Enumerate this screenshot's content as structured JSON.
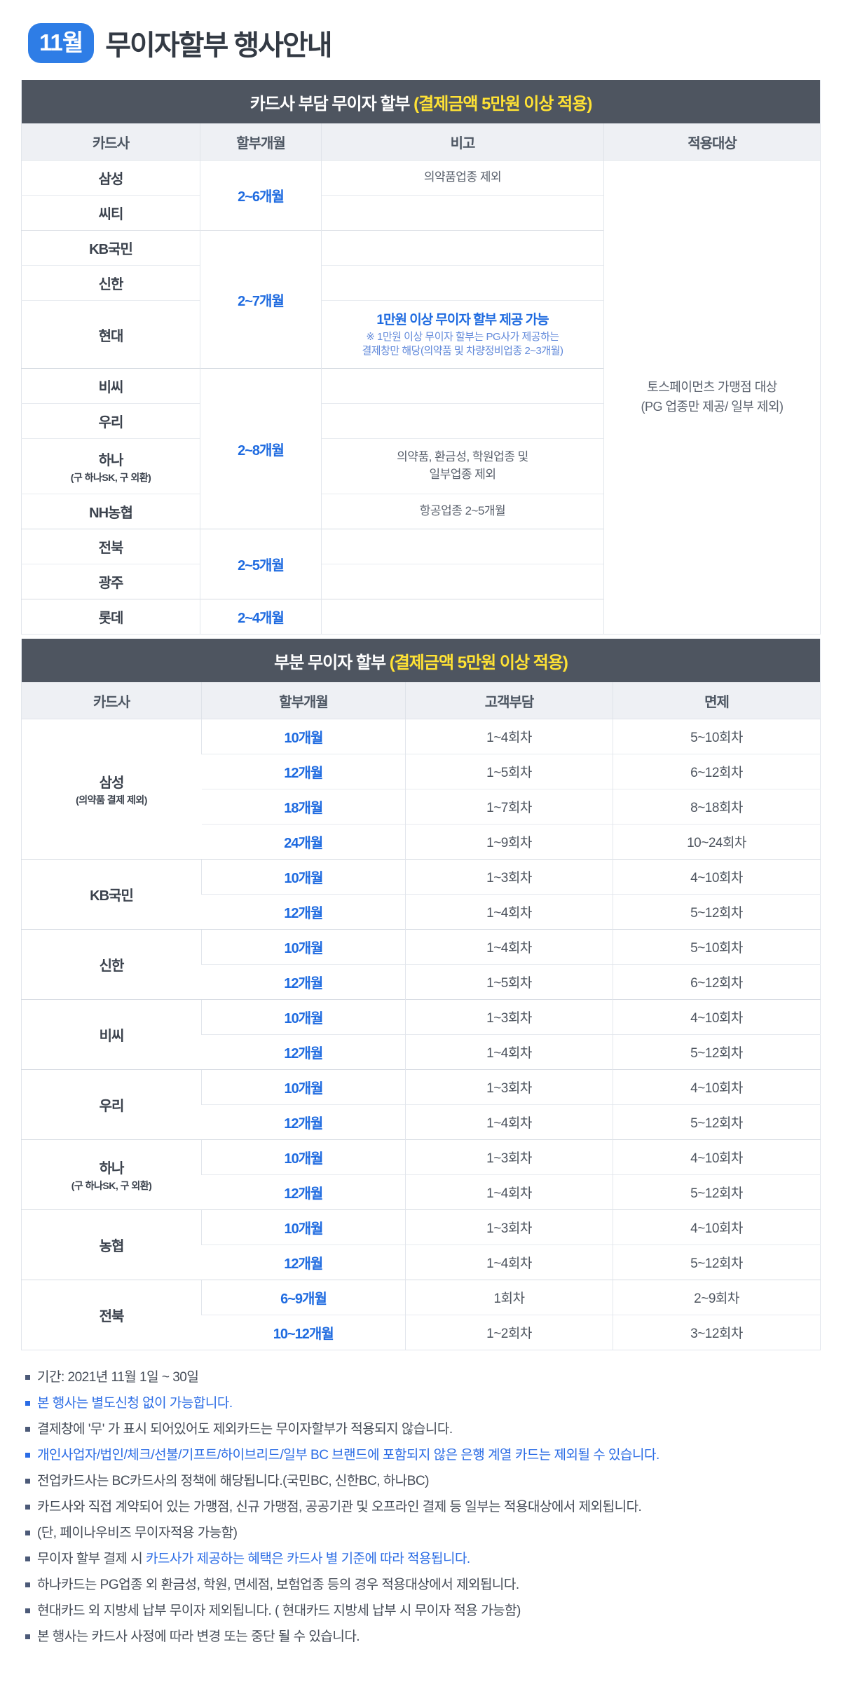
{
  "page": {
    "title_badge": "11월",
    "title": "무이자할부 행사안내"
  },
  "colors": {
    "badge_blue": "#2e7de6",
    "band_dark": "#4e5560",
    "highlight_yellow": "#ffe234",
    "accent_blue": "#1f6be0",
    "note_blue": "#2b6ce5"
  },
  "table1": {
    "header": "카드사 부담 무이자 할부 ",
    "header_highlight": "(결제금액 5만원 이상 적용)",
    "columns": [
      "카드사",
      "할부개월",
      "비고",
      "적용대상"
    ],
    "apply_target": {
      "line1": "토스페이먼츠 가맹점 대상",
      "line2": "(PG 업종만 제공/ 일부 제외)"
    },
    "groups": [
      {
        "months": "2~6개월",
        "rows": [
          {
            "card": "삼성",
            "note": "의약품업종 제외"
          },
          {
            "card": "씨티",
            "note": ""
          }
        ]
      },
      {
        "months": "2~7개월",
        "rows": [
          {
            "card": "KB국민",
            "note": ""
          },
          {
            "card": "신한",
            "note": ""
          },
          {
            "card": "현대",
            "note_title": "1만원 이상 무이자 할부 제공 가능",
            "note_sub": [
              "※ 1만원 이상 무이자 할부는 PG사가 제공하는",
              "결제창만 해당(의약품 및 차량정비업종 2~3개월)"
            ]
          }
        ]
      },
      {
        "months": "2~8개월",
        "rows": [
          {
            "card": "비씨",
            "note": ""
          },
          {
            "card": "우리",
            "note": ""
          },
          {
            "card": "하나",
            "card_sub": "(구 하나SK, 구 외환)",
            "note": "의약품, 환금성, 학원업종 및\n일부업종 제외"
          },
          {
            "card": "NH농협",
            "note": "항공업종 2~5개월"
          }
        ]
      },
      {
        "months": "2~5개월",
        "rows": [
          {
            "card": "전북",
            "note": ""
          },
          {
            "card": "광주",
            "note": ""
          }
        ]
      },
      {
        "months": "2~4개월",
        "rows": [
          {
            "card": "롯데",
            "note": ""
          }
        ]
      }
    ]
  },
  "table2": {
    "header": "부분 무이자 할부 ",
    "header_highlight": "(결제금액 5만원 이상 적용)",
    "columns": [
      "카드사",
      "할부개월",
      "고객부담",
      "면제"
    ],
    "groups": [
      {
        "card": "삼성",
        "card_sub": "(의약품 결제 제외)",
        "rows": [
          [
            "10개월",
            "1~4회차",
            "5~10회차"
          ],
          [
            "12개월",
            "1~5회차",
            "6~12회차"
          ],
          [
            "18개월",
            "1~7회차",
            "8~18회차"
          ],
          [
            "24개월",
            "1~9회차",
            "10~24회차"
          ]
        ]
      },
      {
        "card": "KB국민",
        "rows": [
          [
            "10개월",
            "1~3회차",
            "4~10회차"
          ],
          [
            "12개월",
            "1~4회차",
            "5~12회차"
          ]
        ]
      },
      {
        "card": "신한",
        "rows": [
          [
            "10개월",
            "1~4회차",
            "5~10회차"
          ],
          [
            "12개월",
            "1~5회차",
            "6~12회차"
          ]
        ]
      },
      {
        "card": "비씨",
        "rows": [
          [
            "10개월",
            "1~3회차",
            "4~10회차"
          ],
          [
            "12개월",
            "1~4회차",
            "5~12회차"
          ]
        ]
      },
      {
        "card": "우리",
        "rows": [
          [
            "10개월",
            "1~3회차",
            "4~10회차"
          ],
          [
            "12개월",
            "1~4회차",
            "5~12회차"
          ]
        ]
      },
      {
        "card": "하나",
        "card_sub": "(구 하나SK, 구 외환)",
        "rows": [
          [
            "10개월",
            "1~3회차",
            "4~10회차"
          ],
          [
            "12개월",
            "1~4회차",
            "5~12회차"
          ]
        ]
      },
      {
        "card": "농협",
        "rows": [
          [
            "10개월",
            "1~3회차",
            "4~10회차"
          ],
          [
            "12개월",
            "1~4회차",
            "5~12회차"
          ]
        ]
      },
      {
        "card": "전북",
        "rows": [
          [
            "6~9개월",
            "1회차",
            "2~9회차"
          ],
          [
            "10~12개월",
            "1~2회차",
            "3~12회차"
          ]
        ]
      }
    ]
  },
  "notes": [
    {
      "style": "dark",
      "text": "기간: 2021년 11월 1일 ~ 30일"
    },
    {
      "style": "blue",
      "text": "본 행사는 별도신청 없이 가능합니다."
    },
    {
      "style": "dark",
      "text": "결제창에 '무' 가 표시 되어있어도 제외카드는 무이자할부가 적용되지 않습니다."
    },
    {
      "style": "blue",
      "text": "개인사업자/법인/체크/선불/기프트/하이브리드/일부 BC 브랜드에 포함되지 않은 은행 계열 카드는 제외될 수 있습니다."
    },
    {
      "style": "dark",
      "text": "전업카드사는 BC카드사의 정책에 해당됩니다.(국민BC, 신한BC, 하나BC)"
    },
    {
      "style": "dark",
      "text": "카드사와 직접 계약되어 있는 가맹점, 신규 가맹점, 공공기관 및 오프라인 결제 등 일부는 적용대상에서 제외됩니다."
    },
    {
      "style": "dark",
      "text": "(단, 페이나우비즈 무이자적용 가능함)"
    },
    {
      "style": "mixed",
      "prefix": "무이자 할부 결제 시 ",
      "text": "카드사가 제공하는 혜택은 카드사 별 기준에 따라 적용됩니다."
    },
    {
      "style": "dark",
      "text": "하나카드는 PG업종 외 환금성, 학원, 면세점, 보험업종 등의 경우 적용대상에서 제외됩니다."
    },
    {
      "style": "dark",
      "text": "현대카드 외 지방세 납부 무이자 제외됩니다. ( 현대카드 지방세 납부 시 무이자 적용 가능함)"
    },
    {
      "style": "dark",
      "text": "본 행사는 카드사 사정에 따라 변경 또는 중단 될 수 있습니다."
    }
  ]
}
